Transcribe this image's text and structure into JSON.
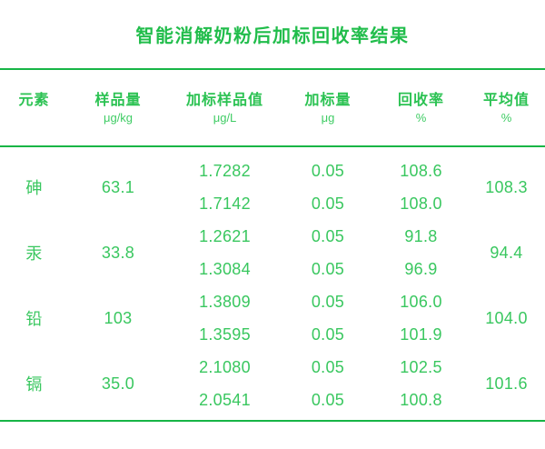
{
  "colors": {
    "accent_green": "#21bd4b",
    "rule_green": "#17b546",
    "data_green": "#39c75f",
    "background": "#ffffff"
  },
  "chart_data": {
    "type": "table",
    "title": "智能消解奶粉后加标回收率结果",
    "columns": [
      {
        "label": "元素",
        "unit": ""
      },
      {
        "label": "样品量",
        "unit": "μg/kg"
      },
      {
        "label": "加标样品值",
        "unit": "μg/L"
      },
      {
        "label": "加标量",
        "unit": "μg"
      },
      {
        "label": "回收率",
        "unit": "%"
      },
      {
        "label": "平均值",
        "unit": "%"
      }
    ],
    "rows": [
      {
        "element": "砷",
        "sample": "63.1",
        "spiked": [
          "1.7282",
          "1.7142"
        ],
        "amount": [
          "0.05",
          "0.05"
        ],
        "recovery": [
          "108.6",
          "108.0"
        ],
        "average": "108.3"
      },
      {
        "element": "汞",
        "sample": "33.8",
        "spiked": [
          "1.2621",
          "1.3084"
        ],
        "amount": [
          "0.05",
          "0.05"
        ],
        "recovery": [
          "91.8",
          "96.9"
        ],
        "average": "94.4"
      },
      {
        "element": "铅",
        "sample": "103",
        "spiked": [
          "1.3809",
          "1.3595"
        ],
        "amount": [
          "0.05",
          "0.05"
        ],
        "recovery": [
          "106.0",
          "101.9"
        ],
        "average": "104.0"
      },
      {
        "element": "镉",
        "sample": "35.0",
        "spiked": [
          "2.1080",
          "2.0541"
        ],
        "amount": [
          "0.05",
          "0.05"
        ],
        "recovery": [
          "102.5",
          "100.8"
        ],
        "average": "101.6"
      }
    ]
  }
}
